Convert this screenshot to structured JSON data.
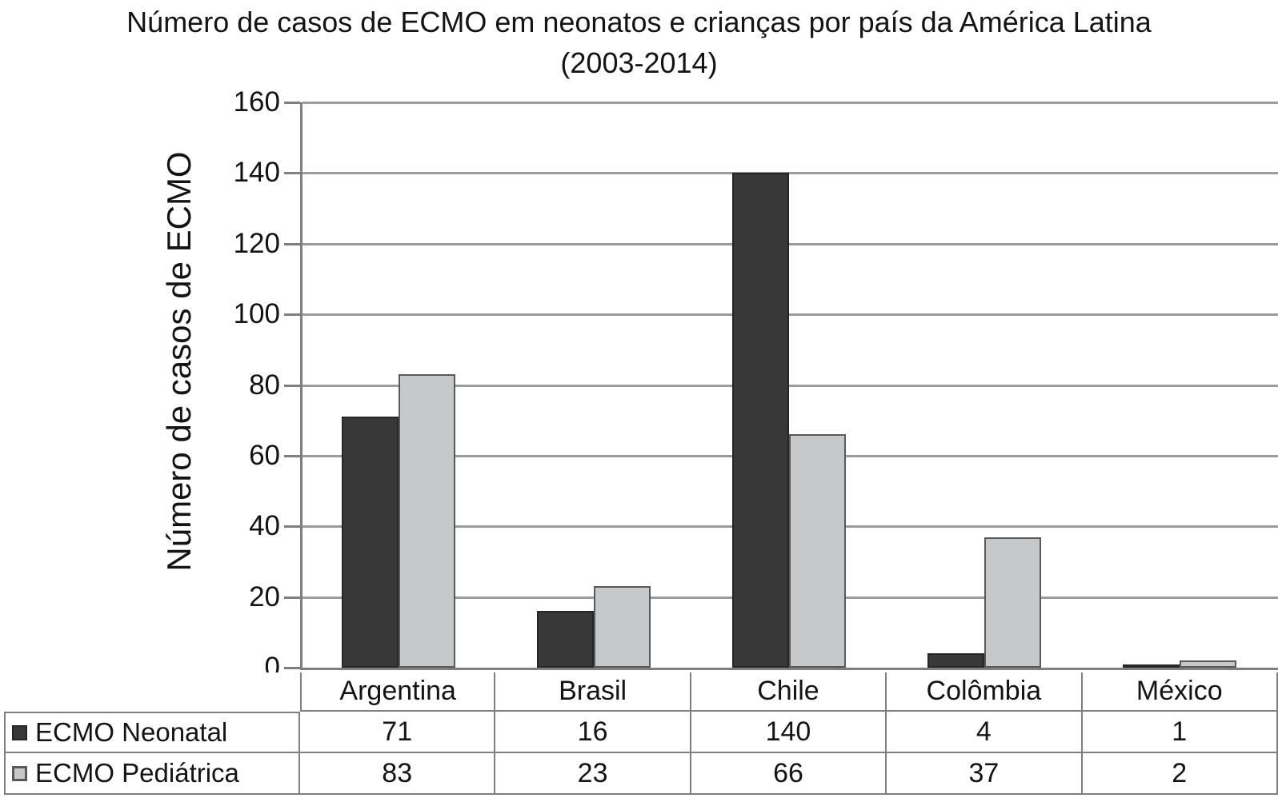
{
  "chart": {
    "title_line1": "Número de casos de ECMO em neonatos e crianças por país da América Latina",
    "title_line2": "(2003-2014)",
    "ylabel": "Número de casos de ECMO"
  },
  "chart_data": {
    "type": "bar",
    "title": "Número de casos de ECMO em neonatos e crianças por país da América Latina (2003-2014)",
    "xlabel": "",
    "ylabel": "Número de casos de ECMO",
    "categories": [
      "Argentina",
      "Brasil",
      "Chile",
      "Colômbia",
      "México"
    ],
    "series": [
      {
        "name": "ECMO Neonatal",
        "values": [
          71,
          16,
          140,
          4,
          1
        ],
        "color": "#383838",
        "border_color": "#262626"
      },
      {
        "name": "ECMO Pediátrica",
        "values": [
          83,
          23,
          66,
          37,
          2
        ],
        "color": "#c7c8ca",
        "border_color": "#58595b"
      }
    ],
    "ylim": [
      0,
      160
    ],
    "ytick_step": 20,
    "yticks": [
      0,
      20,
      40,
      60,
      80,
      100,
      120,
      140,
      160
    ],
    "grid": true,
    "legend_position": "table-left-of-data-table",
    "gridline_color": "#9b9b9b",
    "axis_color": "#7f7f7f",
    "table_border_color": "#7f7f7f",
    "background_color": "#ffffff",
    "text_color": "#141414"
  }
}
